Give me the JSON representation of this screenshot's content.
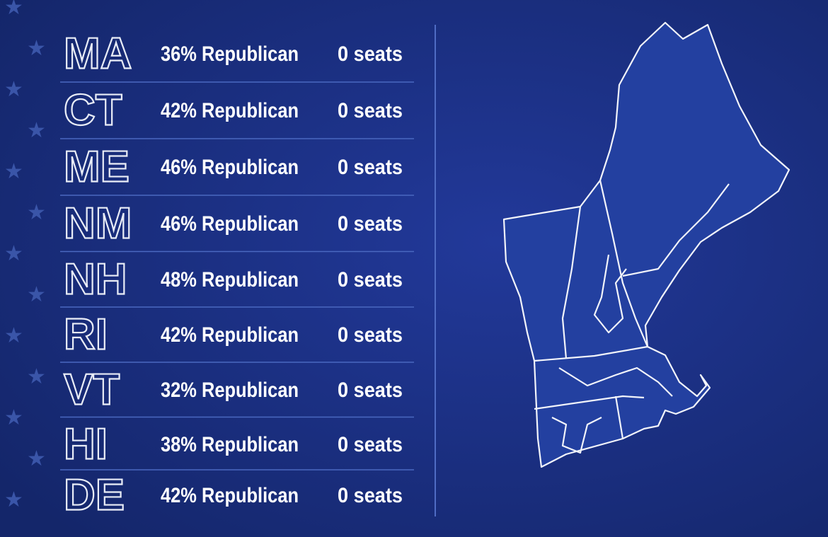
{
  "rows": [
    {
      "state": "MA",
      "share": "36% Republican",
      "seats": "0 seats"
    },
    {
      "state": "CT",
      "share": "42% Republican",
      "seats": "0 seats"
    },
    {
      "state": "ME",
      "share": "46% Republican",
      "seats": "0 seats"
    },
    {
      "state": "NM",
      "share": "46% Republican",
      "seats": "0 seats"
    },
    {
      "state": "NH",
      "share": "48% Republican",
      "seats": "0 seats"
    },
    {
      "state": "RI",
      "share": "42% Republican",
      "seats": "0 seats"
    },
    {
      "state": "VT",
      "share": "32% Republican",
      "seats": "0 seats"
    },
    {
      "state": "HI",
      "share": "38% Republican",
      "seats": "0 seats"
    },
    {
      "state": "DE",
      "share": "42% Republican",
      "seats": "0 seats"
    }
  ]
}
